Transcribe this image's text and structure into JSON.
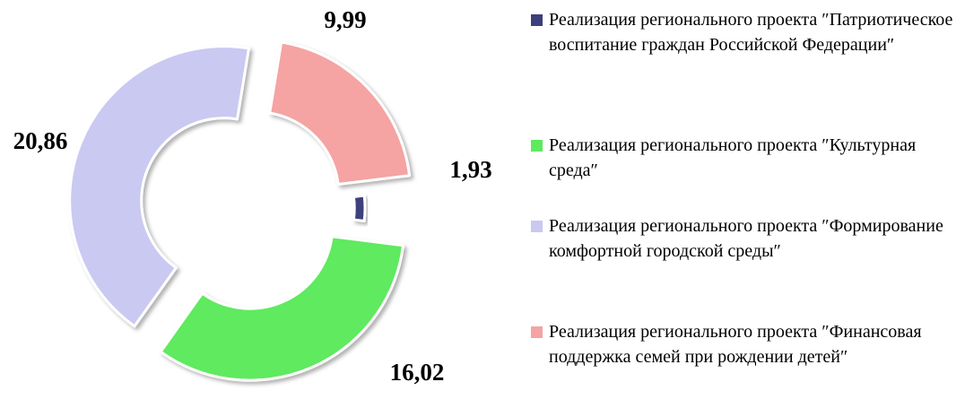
{
  "chart_data": {
    "type": "doughnut",
    "categories": [
      "Реализация регионального проекта ″Патриотическое воспитание граждан Российской Федерации″",
      "Реализация регионального проекта ″Культурная среда″",
      "Реализация регионального проекта ″Формирование комфортной городской среды″",
      "Реализация регионального проекта ″Финансовая поддержка семей при рождении детей″"
    ],
    "values": [
      1.93,
      16.02,
      20.86,
      9.99
    ],
    "value_labels": [
      "1,93",
      "16,02",
      "20,86",
      "9,99"
    ],
    "colors": [
      "#3c3f7c",
      "#5eea5e",
      "#c9c9f2",
      "#f5a3a3"
    ],
    "legend": "right"
  }
}
